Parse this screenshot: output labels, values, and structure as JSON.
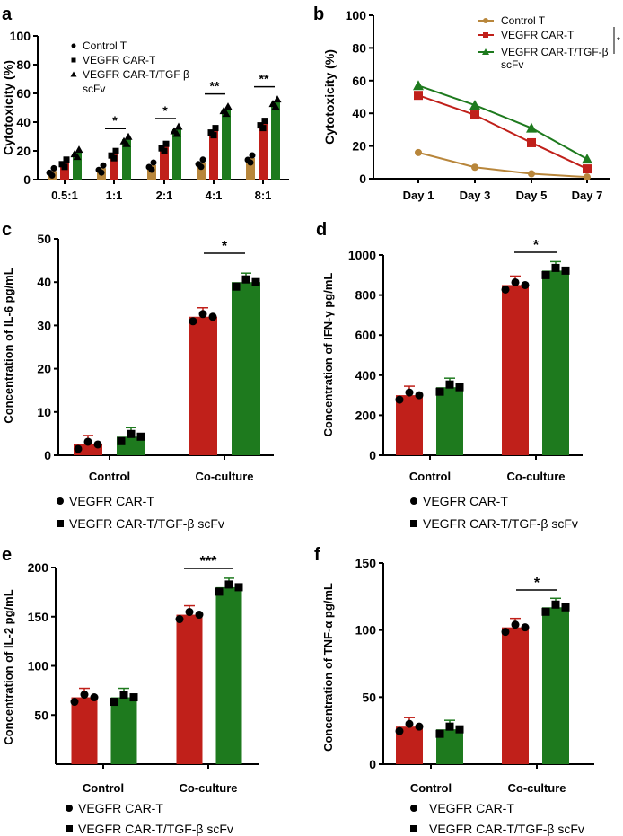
{
  "colors": {
    "control": "#b8863b",
    "vegfr": "#c0201a",
    "tgf": "#1e7a1e"
  },
  "chart_data": [
    {
      "panel": "a",
      "type": "bar",
      "ylabel": "Cytotoxicity (%)",
      "ylim": [
        0,
        100
      ],
      "yticks": [
        0,
        20,
        40,
        60,
        80,
        100
      ],
      "categories": [
        "0.5:1",
        "1:1",
        "2:1",
        "4:1",
        "8:1"
      ],
      "legend": [
        "Control T",
        "VEGFR CAR-T",
        "VEGFR CAR-T/TGF β",
        "scFv"
      ],
      "series": [
        {
          "name": "Control T",
          "values": [
            6,
            8,
            10,
            12,
            15
          ]
        },
        {
          "name": "VEGFR CAR-T",
          "values": [
            12,
            18,
            23,
            34,
            39
          ]
        },
        {
          "name": "VEGFR CAR-T/TGF β scFv",
          "values": [
            19,
            28,
            35,
            49,
            54
          ]
        }
      ],
      "significance": [
        "",
        "*",
        "*",
        "**",
        "**"
      ]
    },
    {
      "panel": "b",
      "type": "line",
      "ylabel": "Cytotoxicity (%)",
      "ylim": [
        0,
        100
      ],
      "yticks": [
        0,
        20,
        40,
        60,
        80,
        100
      ],
      "categories": [
        "Day 1",
        "Day 3",
        "Day 5",
        "Day 7"
      ],
      "legend": [
        "Control T",
        "VEGFR CAR-T",
        "VEGFR CAR-T/TGF-β",
        "scFv"
      ],
      "series": [
        {
          "name": "Control T",
          "values": [
            16,
            7,
            3,
            1
          ]
        },
        {
          "name": "VEGFR CAR-T",
          "values": [
            51,
            39,
            22,
            6
          ]
        },
        {
          "name": "VEGFR CAR-T/TGF-β scFv",
          "values": [
            57,
            45,
            31,
            12
          ]
        }
      ],
      "significance": "*"
    },
    {
      "panel": "c",
      "type": "bar",
      "ylabel": "Concentration of IL-6 pg/mL",
      "ylim": [
        0,
        50
      ],
      "yticks": [
        0,
        10,
        20,
        30,
        40,
        50
      ],
      "categories": [
        "Control",
        "Co-culture"
      ],
      "legend": [
        "VEGFR CAR-T",
        "VEGFR CAR-T/TGF-β scFv"
      ],
      "series": [
        {
          "name": "VEGFR CAR-T",
          "values": [
            2.5,
            32
          ]
        },
        {
          "name": "VEGFR CAR-T/TGF-β scFv",
          "values": [
            4.3,
            40
          ]
        }
      ],
      "significance": "*"
    },
    {
      "panel": "d",
      "type": "bar",
      "ylabel": "Concentration of IFN-γ pg/mL",
      "ylim": [
        0,
        1000
      ],
      "yticks": [
        0,
        200,
        400,
        600,
        800,
        1000
      ],
      "categories": [
        "Control",
        "Co-culture"
      ],
      "legend": [
        "VEGFR CAR-T",
        "VEGFR CAR-T/TGF-β scFv"
      ],
      "series": [
        {
          "name": "VEGFR CAR-T",
          "values": [
            300,
            850
          ]
        },
        {
          "name": "VEGFR CAR-T/TGF-β scFv",
          "values": [
            340,
            922
          ]
        }
      ],
      "significance": "*"
    },
    {
      "panel": "e",
      "type": "bar",
      "ylabel": "Concentration of IL-2 pg/mL",
      "ylim": [
        0,
        200
      ],
      "yticks": [
        50,
        100,
        150,
        200
      ],
      "categories": [
        "Control",
        "Co-culture"
      ],
      "legend": [
        "VEGFR CAR-T",
        "VEGFR CAR-T/TGF-β scFv"
      ],
      "series": [
        {
          "name": "VEGFR CAR-T",
          "values": [
            68,
            152
          ]
        },
        {
          "name": "VEGFR CAR-T/TGF-β scFv",
          "values": [
            68,
            180
          ]
        }
      ],
      "significance": "***"
    },
    {
      "panel": "f",
      "type": "bar",
      "ylabel": "Concentration of TNF-α pg/mL",
      "ylim": [
        0,
        150
      ],
      "yticks": [
        0,
        50,
        100,
        150
      ],
      "categories": [
        "Control",
        "Co-culture"
      ],
      "legend": [
        "VEGFR CAR-T",
        "VEGFR CAR-T/TGF-β scFv"
      ],
      "series": [
        {
          "name": "VEGFR CAR-T",
          "values": [
            28,
            102
          ]
        },
        {
          "name": "VEGFR CAR-T/TGF-β scFv",
          "values": [
            26,
            117
          ]
        }
      ],
      "significance": "*"
    }
  ]
}
